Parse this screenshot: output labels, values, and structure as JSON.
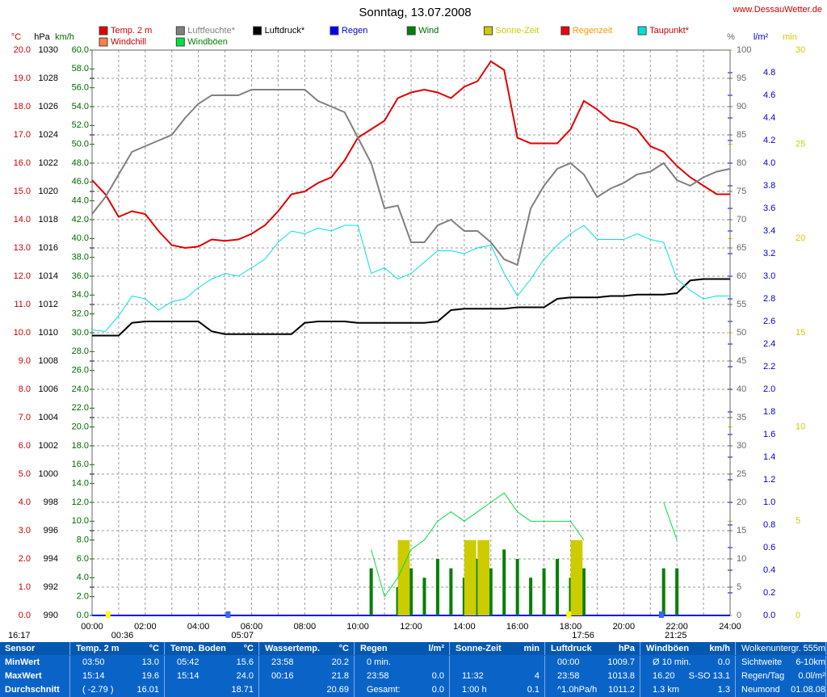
{
  "chart_data": {
    "type": "line",
    "title": "Sonntag, 13.07.2008",
    "source": "www.DessauWetter.de",
    "x": [
      0,
      0.5,
      1,
      1.5,
      2,
      2.5,
      3,
      3.5,
      4,
      4.5,
      5,
      5.5,
      6,
      6.5,
      7,
      7.5,
      8,
      8.5,
      9,
      9.5,
      10,
      10.5,
      11,
      11.5,
      12,
      12.5,
      13,
      13.5,
      14,
      14.5,
      15,
      15.5,
      16,
      16.5,
      17,
      17.5,
      18,
      18.5,
      19,
      19.5,
      20,
      20.5,
      21,
      21.5,
      22,
      22.5,
      23,
      23.5,
      24
    ],
    "xlim": [
      0,
      24
    ],
    "xticks": [
      {
        "value": 0,
        "label": "00:00"
      },
      {
        "value": 2,
        "label": "02:00"
      },
      {
        "value": 4,
        "label": "04:00"
      },
      {
        "value": 6,
        "label": "06:00"
      },
      {
        "value": 8,
        "label": "08:00"
      },
      {
        "value": 10,
        "label": "10:00"
      },
      {
        "value": 12,
        "label": "12:00"
      },
      {
        "value": 14,
        "label": "14:00"
      },
      {
        "value": 16,
        "label": "16:00"
      },
      {
        "value": 18,
        "label": "18:00"
      },
      {
        "value": 20,
        "label": "20:00"
      },
      {
        "value": 22,
        "label": "22:00"
      },
      {
        "value": 24,
        "label": "24:00"
      }
    ],
    "xgrid_minor": [
      1,
      3,
      5,
      7,
      9,
      11,
      13,
      15,
      17,
      19,
      21,
      23
    ],
    "grid": true,
    "axes": [
      {
        "title": "°C",
        "color": "#cc0000",
        "lim": [
          0,
          20
        ],
        "ticks": [
          {
            "value": 0,
            "label": "0.0"
          },
          {
            "value": 1,
            "label": "1.0"
          },
          {
            "value": 2,
            "label": "2.0"
          },
          {
            "value": 3,
            "label": "3.0"
          },
          {
            "value": 4,
            "label": "4.0"
          },
          {
            "value": 5,
            "label": "5.0"
          },
          {
            "value": 6,
            "label": "6.0"
          },
          {
            "value": 7,
            "label": "7.0"
          },
          {
            "value": 8,
            "label": "8.0"
          },
          {
            "value": 9,
            "label": "9.0"
          },
          {
            "value": 10,
            "label": "10.0"
          },
          {
            "value": 11,
            "label": "11.0"
          },
          {
            "value": 12,
            "label": "12.0"
          },
          {
            "value": 13,
            "label": "13.0"
          },
          {
            "value": 14,
            "label": "14.0"
          },
          {
            "value": 15,
            "label": "15.0"
          },
          {
            "value": 16,
            "label": "16.0"
          },
          {
            "value": 17,
            "label": "17.0"
          },
          {
            "value": 18,
            "label": "18.0"
          },
          {
            "value": 19,
            "label": "19.0"
          },
          {
            "value": 20,
            "label": "20.0"
          }
        ]
      },
      {
        "title": "hPa",
        "color": "#000000",
        "lim": [
          990,
          1030
        ],
        "ticks": [
          990,
          992,
          994,
          996,
          998,
          1000,
          1002,
          1004,
          1006,
          1008,
          1010,
          1012,
          1014,
          1016,
          1018,
          1020,
          1022,
          1024,
          1026,
          1028,
          1030
        ]
      },
      {
        "title": "km/h",
        "color": "#006600",
        "lim": [
          0,
          60
        ],
        "ticks": [
          {
            "value": 0,
            "label": "0.0"
          },
          {
            "value": 2,
            "label": "2.0"
          },
          {
            "value": 4,
            "label": "4.0"
          },
          {
            "value": 6,
            "label": "6.0"
          },
          {
            "value": 8,
            "label": "8.0"
          },
          {
            "value": 10,
            "label": "10.0"
          },
          {
            "value": 12,
            "label": "12.0"
          },
          {
            "value": 14,
            "label": "14.0"
          },
          {
            "value": 16,
            "label": "16.0"
          },
          {
            "value": 18,
            "label": "18.0"
          },
          {
            "value": 20,
            "label": "20.0"
          },
          {
            "value": 22,
            "label": "22.0"
          },
          {
            "value": 24,
            "label": "24.0"
          },
          {
            "value": 26,
            "label": "26.0"
          },
          {
            "value": 28,
            "label": "28.0"
          },
          {
            "value": 30,
            "label": "30.0"
          },
          {
            "value": 32,
            "label": "32.0"
          },
          {
            "value": 34,
            "label": "34.0"
          },
          {
            "value": 36,
            "label": "36.0"
          },
          {
            "value": 38,
            "label": "38.0"
          },
          {
            "value": 40,
            "label": "40.0"
          },
          {
            "value": 42,
            "label": "42.0"
          },
          {
            "value": 44,
            "label": "44.0"
          },
          {
            "value": 46,
            "label": "46.0"
          },
          {
            "value": 48,
            "label": "48.0"
          },
          {
            "value": 50,
            "label": "50.0"
          },
          {
            "value": 52,
            "label": "52.0"
          },
          {
            "value": 54,
            "label": "54.0"
          },
          {
            "value": 56,
            "label": "56.0"
          },
          {
            "value": 58,
            "label": "58.0"
          },
          {
            "value": 60,
            "label": "60.0"
          }
        ]
      },
      {
        "title": "%",
        "color": "#666666",
        "lim": [
          0,
          100
        ],
        "ticks": [
          0,
          5,
          10,
          15,
          20,
          25,
          30,
          35,
          40,
          45,
          50,
          55,
          60,
          65,
          70,
          75,
          80,
          85,
          90,
          95,
          100
        ]
      },
      {
        "title": "l/m²",
        "color": "#0000cc",
        "lim": [
          0,
          5
        ],
        "ticks": [
          {
            "value": 0,
            "label": "0.0"
          },
          0.2,
          0.4,
          0.6,
          0.8,
          {
            "value": 1,
            "label": "1.0"
          },
          1.2,
          1.4,
          1.6,
          1.8,
          {
            "value": 2,
            "label": "2.0"
          },
          2.2,
          2.4,
          2.6,
          2.8,
          {
            "value": 3,
            "label": "3.0"
          },
          3.2,
          3.4,
          3.6,
          3.8,
          {
            "value": 4,
            "label": "4.0"
          },
          4.2,
          4.4,
          4.6,
          4.8
        ]
      },
      {
        "title": "min",
        "color": "#cccc00",
        "lim": [
          0,
          30
        ],
        "ticks": [
          0,
          5,
          10,
          15,
          20,
          25,
          30
        ]
      }
    ],
    "series": [
      {
        "name": "Temp. 2 m",
        "color": "#e00000",
        "text_color": "#cc0000",
        "axis": 0,
        "style": "line",
        "values": [
          15.4,
          14.9,
          14.1,
          14.3,
          14.2,
          13.6,
          13.1,
          13.0,
          13.05,
          13.3,
          13.25,
          13.3,
          13.5,
          13.8,
          14.3,
          14.9,
          15.0,
          15.3,
          15.5,
          16.1,
          16.9,
          17.2,
          17.5,
          18.3,
          18.5,
          18.6,
          18.5,
          18.3,
          18.7,
          18.9,
          19.6,
          19.3,
          16.9,
          16.7,
          16.7,
          16.7,
          17.2,
          18.2,
          17.9,
          17.5,
          17.4,
          17.2,
          16.6,
          16.4,
          15.9,
          15.5,
          15.2,
          14.9,
          14.9
        ]
      },
      {
        "name": "Luftfeuchte*",
        "color": "#808080",
        "text_color": "#808080",
        "axis": 3,
        "style": "line",
        "values": [
          71,
          74,
          78,
          82,
          83,
          84,
          85,
          88,
          90.5,
          92,
          92,
          92,
          93,
          93,
          93,
          93,
          93,
          91,
          90,
          89,
          84.5,
          80,
          72,
          72.5,
          66,
          66,
          69,
          70,
          68,
          68,
          66,
          63,
          62,
          72,
          76,
          79,
          80,
          78,
          74,
          75.5,
          76.5,
          78,
          78.5,
          80,
          77,
          76,
          77.5,
          78.5,
          79
        ]
      },
      {
        "name": "Luftdruck*",
        "color": "#000000",
        "text_color": "#000000",
        "axis": 1,
        "style": "line",
        "values": [
          1009.8,
          1009.8,
          1009.8,
          1010.7,
          1010.8,
          1010.8,
          1010.8,
          1010.8,
          1010.8,
          1010.1,
          1009.9,
          1009.9,
          1009.9,
          1009.9,
          1009.9,
          1009.9,
          1010.7,
          1010.8,
          1010.8,
          1010.8,
          1010.7,
          1010.7,
          1010.7,
          1010.7,
          1010.7,
          1010.7,
          1010.8,
          1011.6,
          1011.7,
          1011.7,
          1011.7,
          1011.7,
          1011.8,
          1011.8,
          1011.8,
          1012.4,
          1012.5,
          1012.5,
          1012.5,
          1012.6,
          1012.6,
          1012.7,
          1012.7,
          1012.7,
          1012.8,
          1013.7,
          1013.8,
          1013.8,
          1013.8
        ]
      },
      {
        "name": "Regen",
        "color": "#0000ff",
        "text_color": "#0000cc"
      },
      {
        "name": "Wind",
        "color": "#008000",
        "text_color": "#006600",
        "axis": 2,
        "style": "bar",
        "values": [
          null,
          null,
          null,
          null,
          null,
          null,
          null,
          null,
          null,
          null,
          null,
          null,
          null,
          null,
          null,
          null,
          null,
          null,
          null,
          null,
          null,
          5,
          null,
          3,
          5,
          4,
          6,
          5,
          4,
          6,
          5,
          7,
          6,
          4,
          5,
          6,
          4,
          5,
          null,
          null,
          null,
          null,
          null,
          5,
          5,
          null,
          null,
          null,
          null
        ]
      },
      {
        "name": "Sonne-Zeit",
        "color": "#cccc00",
        "text_color": "#cccc00",
        "axis": 5,
        "style": "bar",
        "values": [
          null,
          null,
          null,
          null,
          null,
          null,
          null,
          null,
          null,
          null,
          null,
          null,
          null,
          null,
          null,
          null,
          null,
          null,
          null,
          null,
          null,
          null,
          null,
          4,
          null,
          null,
          null,
          null,
          4,
          4,
          null,
          null,
          null,
          null,
          null,
          null,
          4,
          null,
          null,
          null,
          null,
          null,
          null,
          null,
          null,
          null,
          null,
          null,
          null
        ]
      },
      {
        "name": "Regenzeit",
        "color": "#ee0000",
        "text_color": "#ff9900"
      },
      {
        "name": "Taupunkt*",
        "color": "#00e0e0",
        "text_color": "#cc0000",
        "axis": 0,
        "style": "line",
        "values": [
          10.1,
          10.05,
          10.6,
          11.3,
          11.2,
          10.8,
          11.1,
          11.2,
          11.6,
          11.9,
          12.1,
          12.0,
          12.3,
          12.6,
          13.2,
          13.6,
          13.5,
          13.7,
          13.6,
          13.8,
          13.8,
          12.1,
          12.3,
          11.9,
          12.1,
          12.5,
          12.9,
          12.9,
          12.8,
          13.0,
          13.1,
          12.1,
          11.3,
          11.9,
          12.6,
          13.1,
          13.5,
          13.8,
          13.3,
          13.3,
          13.3,
          13.5,
          13.3,
          13.2,
          11.9,
          11.5,
          11.2,
          11.3,
          11.3
        ]
      },
      {
        "name": "Windchill",
        "color": "#ff8040",
        "text_color": "#cc0000"
      },
      {
        "name": "Windböen",
        "color": "#00e040",
        "text_color": "#008000",
        "axis": 2,
        "style": "line",
        "values": [
          null,
          null,
          null,
          null,
          null,
          null,
          null,
          null,
          null,
          null,
          null,
          null,
          null,
          null,
          null,
          null,
          null,
          null,
          null,
          null,
          null,
          7,
          2,
          4,
          7,
          8,
          10,
          11,
          10,
          11,
          12,
          13,
          11,
          10,
          10,
          10,
          10,
          8,
          null,
          null,
          null,
          null,
          null,
          12,
          8,
          null,
          null,
          null,
          null
        ]
      }
    ],
    "events": [
      "16:17",
      "00:36",
      "05:07",
      "17:56",
      "21:25"
    ]
  },
  "table": {
    "row_title": "Sensor",
    "row_labels": [
      "MinWert",
      "MaxWert",
      "Durchschnitt"
    ],
    "columns": [
      {
        "name": "Temp. 2 m",
        "unit": "°C",
        "rows": [
          {
            "time": "03:50",
            "value": "13.0"
          },
          {
            "time": "15:14",
            "value": "19.6"
          },
          {
            "time": "( -2.79 )",
            "value": "16.01"
          }
        ]
      },
      {
        "name": "Temp. Boden",
        "unit": "°C",
        "rows": [
          {
            "time": "05:42",
            "value": "15.6"
          },
          {
            "time": "15:14",
            "value": "24.0"
          },
          {
            "value": "18.71"
          }
        ]
      },
      {
        "name": "Wassertemp.",
        "unit": "°C",
        "rows": [
          {
            "time": "23:58",
            "value": "20.2"
          },
          {
            "time": "00:16",
            "value": "21.8"
          },
          {
            "value": "20.69"
          }
        ]
      },
      {
        "name": "Regen",
        "unit": "l/m²",
        "rows": [
          {
            "time": "0 min."
          },
          {
            "time": "23:58",
            "value": "0.0"
          },
          {
            "time": "Gesamt:",
            "value": "0.0"
          }
        ]
      },
      {
        "name": "Sonne-Zeit",
        "unit": "min",
        "rows": [
          {},
          {
            "time": "11:32",
            "value": "4"
          },
          {
            "time": "1:00 h",
            "value": "0.1"
          }
        ]
      },
      {
        "name": "Luftdruck",
        "unit": "hPa",
        "rows": [
          {
            "time": "00:00",
            "value": "1009.7"
          },
          {
            "time": "23:58",
            "value": "1013.8"
          },
          {
            "time": "^1.0hPa/h",
            "value": "1011.2"
          }
        ]
      },
      {
        "name": "Windböen",
        "unit": "km/h",
        "rows": [
          {
            "time": "Ø 10 min.",
            "value": "0.0"
          },
          {
            "time": "16.20",
            "value": "S-SO 13.1"
          },
          {
            "time": "1.3 km",
            "value": "1.3"
          }
        ]
      }
    ],
    "info": [
      {
        "label": "Wolkenuntergr.",
        "value": "555m"
      },
      {
        "label": "Sichtweite",
        "value": "6-10km"
      },
      {
        "label": "Regen/Tag",
        "value": "0.0l/m²"
      },
      {
        "label": "Neumond",
        "value": "01.08.08"
      }
    ]
  }
}
